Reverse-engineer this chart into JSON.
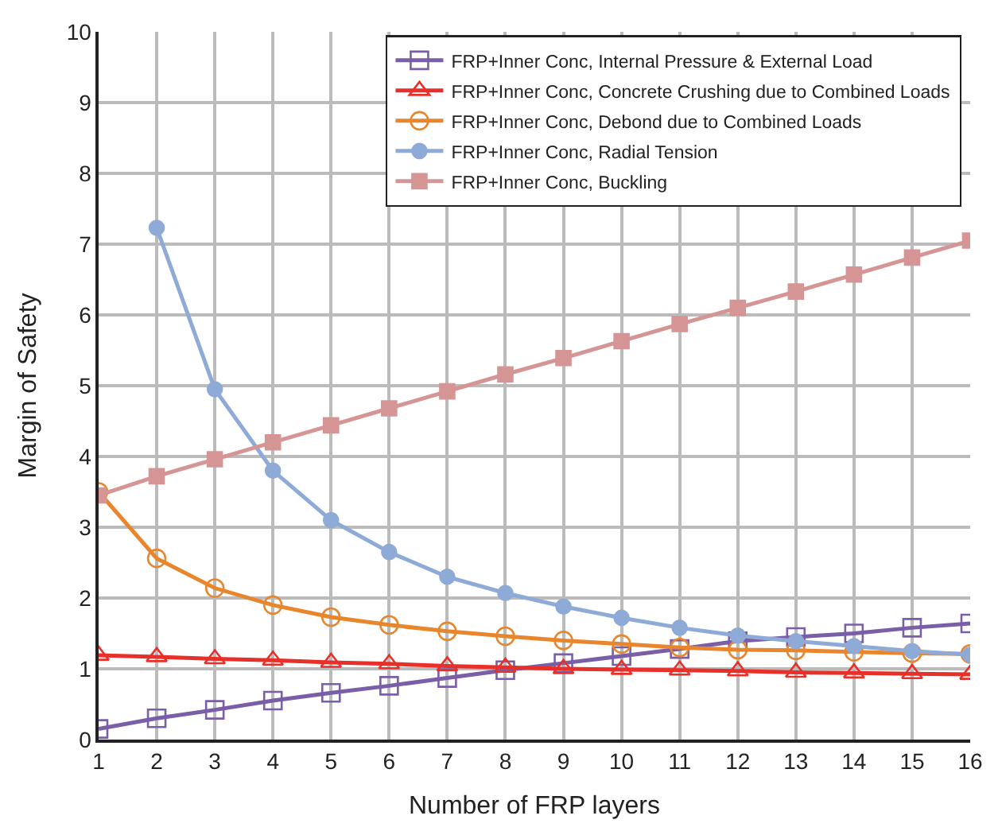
{
  "chart_data": {
    "type": "line",
    "xlabel": "Number of FRP layers",
    "ylabel": "Margin of Safety",
    "x": [
      1,
      2,
      3,
      4,
      5,
      6,
      7,
      8,
      9,
      10,
      11,
      12,
      13,
      14,
      15,
      16
    ],
    "xlim": [
      1,
      16
    ],
    "xticks": [
      1,
      2,
      3,
      4,
      5,
      6,
      7,
      8,
      9,
      10,
      11,
      12,
      13,
      14,
      15,
      16
    ],
    "ylim": [
      0,
      10
    ],
    "yticks": [
      0,
      1,
      2,
      3,
      4,
      5,
      6,
      7,
      8,
      9,
      10
    ],
    "grid": true,
    "legend": "top right",
    "series": [
      {
        "name": "FRP+Inner Conc, Internal Pressure & External Load",
        "color": "#7a5ea8",
        "marker": "square-open",
        "values": [
          0.15,
          0.3,
          0.42,
          0.55,
          0.66,
          0.76,
          0.87,
          0.98,
          1.08,
          1.18,
          1.28,
          1.39,
          1.45,
          1.5,
          1.58,
          1.64
        ]
      },
      {
        "name": "FRP+Inner Conc, Concrete Crushing due to Combined Loads",
        "color": "#e8302a",
        "marker": "triangle-open",
        "values": [
          1.19,
          1.17,
          1.14,
          1.12,
          1.09,
          1.07,
          1.04,
          1.02,
          1.0,
          0.99,
          0.98,
          0.97,
          0.95,
          0.94,
          0.93,
          0.92
        ]
      },
      {
        "name": "FRP+Inner Conc, Debond due to Combined Loads",
        "color": "#e8862e",
        "marker": "circle-open",
        "values": [
          3.5,
          2.56,
          2.14,
          1.9,
          1.73,
          1.62,
          1.53,
          1.46,
          1.4,
          1.35,
          1.3,
          1.27,
          1.26,
          1.24,
          1.22,
          1.21
        ]
      },
      {
        "name": "FRP+Inner Conc, Radial Tension",
        "color": "#8eaad6",
        "marker": "circle",
        "values": [
          null,
          7.23,
          4.95,
          3.8,
          3.1,
          2.65,
          2.3,
          2.07,
          1.88,
          1.72,
          1.58,
          1.47,
          1.39,
          1.32,
          1.25,
          1.2
        ]
      },
      {
        "name": "FRP+Inner Conc, Buckling",
        "color": "#d69595",
        "marker": "square",
        "values": [
          3.45,
          3.72,
          3.96,
          4.2,
          4.44,
          4.68,
          4.92,
          5.16,
          5.39,
          5.63,
          5.87,
          6.1,
          6.33,
          6.57,
          6.81,
          7.05
        ]
      }
    ]
  }
}
